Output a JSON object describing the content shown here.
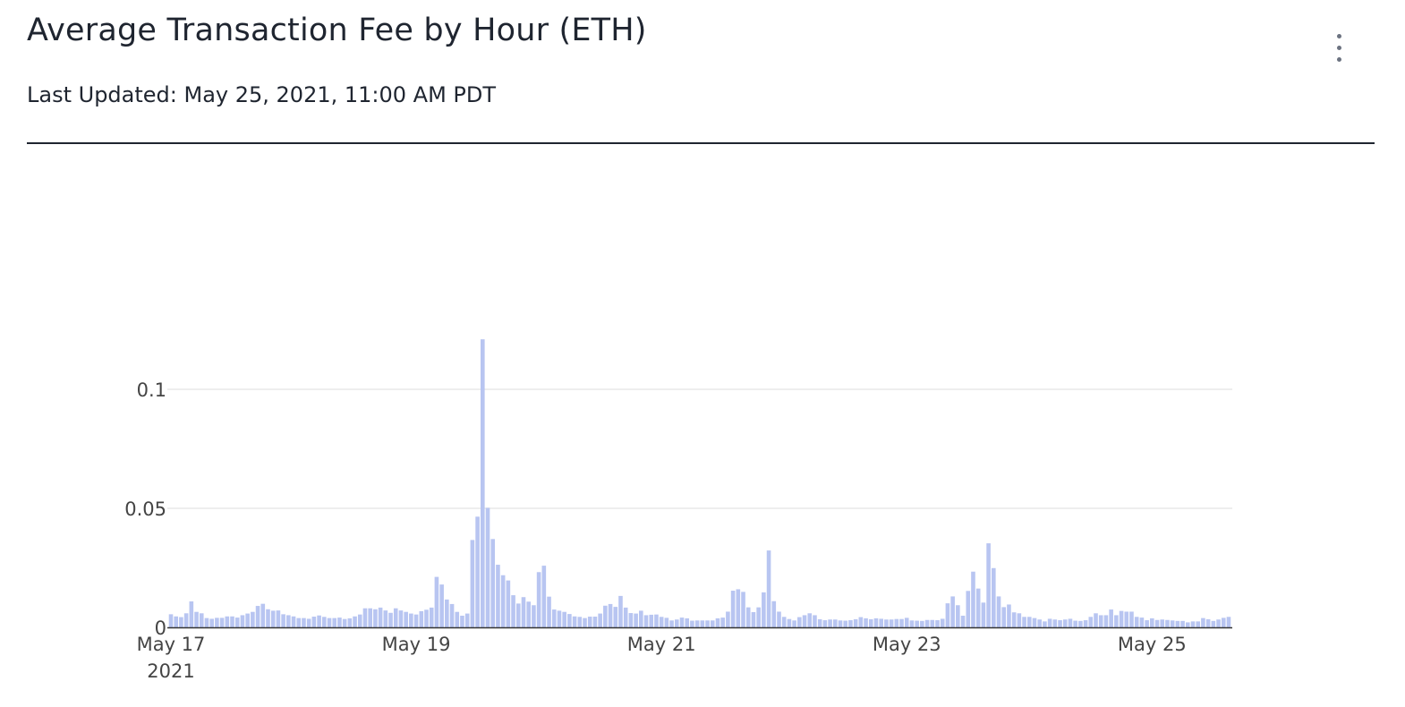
{
  "header": {
    "title": "Average Transaction Fee by Hour (ETH)",
    "subtitle": "Last Updated: May 25, 2021, 11:00 AM PDT",
    "menu_icon": "kebab-vertical-icon"
  },
  "colors": {
    "bar": "#b8c5f1",
    "grid": "#eeeeee",
    "axis": "#333333"
  },
  "chart_data": {
    "type": "bar",
    "title": "Average Transaction Fee by Hour (ETH)",
    "xlabel": "",
    "ylabel": "",
    "x_unit": "hour since May 17, 2021 00:00",
    "x_start": "May 17, 2021 00:00",
    "interval": "1 hour",
    "ylim": [
      0,
      0.127
    ],
    "grid": true,
    "legend": "none",
    "y_ticks": [
      {
        "value": 0,
        "label": "0"
      },
      {
        "value": 0.05,
        "label": "0.05"
      },
      {
        "value": 0.1,
        "label": "0.1"
      }
    ],
    "x_ticks": [
      {
        "hour": 0,
        "label": "May 17",
        "sublabel": "2021"
      },
      {
        "hour": 48,
        "label": "May 19"
      },
      {
        "hour": 96,
        "label": "May 21"
      },
      {
        "hour": 144,
        "label": "May 23"
      },
      {
        "hour": 192,
        "label": "May 25"
      }
    ],
    "values": [
      0.0055,
      0.0046,
      0.0043,
      0.0059,
      0.0109,
      0.0065,
      0.0059,
      0.0039,
      0.0036,
      0.004,
      0.004,
      0.0046,
      0.0046,
      0.0041,
      0.0051,
      0.0058,
      0.0065,
      0.009,
      0.0099,
      0.0076,
      0.007,
      0.0071,
      0.0055,
      0.0051,
      0.0046,
      0.0039,
      0.0039,
      0.0036,
      0.0045,
      0.005,
      0.0044,
      0.0039,
      0.0039,
      0.0041,
      0.0035,
      0.0038,
      0.0046,
      0.0054,
      0.008,
      0.008,
      0.0076,
      0.0083,
      0.0071,
      0.0061,
      0.008,
      0.0071,
      0.0065,
      0.0058,
      0.0054,
      0.0068,
      0.0074,
      0.0083,
      0.0212,
      0.018,
      0.0117,
      0.0098,
      0.0065,
      0.0049,
      0.0058,
      0.0367,
      0.0465,
      0.121,
      0.0502,
      0.0371,
      0.0263,
      0.0219,
      0.0197,
      0.0135,
      0.01,
      0.0127,
      0.0108,
      0.0093,
      0.0232,
      0.0259,
      0.0129,
      0.0075,
      0.007,
      0.0065,
      0.0056,
      0.0046,
      0.0044,
      0.0039,
      0.0045,
      0.0045,
      0.0058,
      0.0091,
      0.0098,
      0.0086,
      0.0132,
      0.0083,
      0.006,
      0.0058,
      0.007,
      0.0051,
      0.0053,
      0.0054,
      0.0044,
      0.004,
      0.0029,
      0.0033,
      0.0041,
      0.0038,
      0.0028,
      0.0029,
      0.0029,
      0.0029,
      0.0029,
      0.0038,
      0.0041,
      0.0066,
      0.0154,
      0.016,
      0.0149,
      0.0084,
      0.0064,
      0.0084,
      0.0147,
      0.0323,
      0.011,
      0.0066,
      0.0044,
      0.0035,
      0.0029,
      0.0043,
      0.0051,
      0.0059,
      0.0051,
      0.0034,
      0.003,
      0.0033,
      0.0033,
      0.0029,
      0.0028,
      0.003,
      0.0034,
      0.0043,
      0.0038,
      0.0034,
      0.0038,
      0.0036,
      0.0033,
      0.0033,
      0.0035,
      0.0035,
      0.004,
      0.0029,
      0.0028,
      0.0027,
      0.0031,
      0.0031,
      0.003,
      0.0036,
      0.0101,
      0.013,
      0.0093,
      0.0049,
      0.0153,
      0.0234,
      0.0163,
      0.0104,
      0.0353,
      0.0249,
      0.013,
      0.0085,
      0.0096,
      0.0063,
      0.0059,
      0.0044,
      0.0044,
      0.0039,
      0.0033,
      0.0025,
      0.0036,
      0.0033,
      0.003,
      0.0033,
      0.0036,
      0.0028,
      0.0027,
      0.003,
      0.0044,
      0.0059,
      0.0051,
      0.0051,
      0.0075,
      0.0051,
      0.0069,
      0.0066,
      0.0066,
      0.0044,
      0.0041,
      0.003,
      0.0038,
      0.0031,
      0.0033,
      0.0031,
      0.0029,
      0.0027,
      0.0027,
      0.0021,
      0.0025,
      0.0025,
      0.0039,
      0.0034,
      0.0027,
      0.0033,
      0.004,
      0.0044
    ]
  }
}
